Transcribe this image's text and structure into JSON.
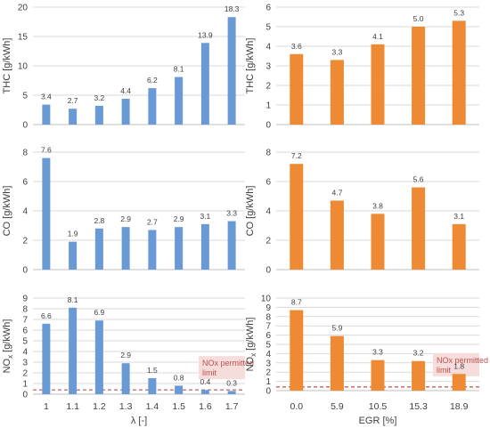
{
  "colors": {
    "blue": "#6a9ad6",
    "orange": "#ed8a33",
    "grid": "#d9d9d9",
    "axis": "#bfbfbf",
    "limit": "#c0504d",
    "limit_bg": "#f7dcdc",
    "text": "#404040"
  },
  "chart_data": [
    {
      "type": "bar",
      "id": "thc-lambda",
      "color": "#6a9ad6",
      "categories": [
        "1",
        "1.1",
        "1.2",
        "1.3",
        "1.4",
        "1.5",
        "1.6",
        "1.7"
      ],
      "values": [
        3.4,
        2.7,
        3.2,
        4.4,
        6.2,
        8.1,
        13.9,
        18.3
      ],
      "value_labels": [
        "3.4",
        "2.7",
        "3.2",
        "4.4",
        "6.2",
        "8.1",
        "13.9",
        "18.3"
      ],
      "ylabel": "THC [g/kWh]",
      "ylim": [
        0,
        20
      ],
      "yticks": [
        "0",
        "5",
        "10",
        "15",
        "20"
      ],
      "grid": true
    },
    {
      "type": "bar",
      "id": "co-lambda",
      "color": "#6a9ad6",
      "categories": [
        "1",
        "1.1",
        "1.2",
        "1.3",
        "1.4",
        "1.5",
        "1.6",
        "1.7"
      ],
      "values": [
        7.6,
        1.9,
        2.8,
        2.9,
        2.7,
        2.9,
        3.1,
        3.3
      ],
      "value_labels": [
        "7.6",
        "1.9",
        "2.8",
        "2.9",
        "2.7",
        "2.9",
        "3.1",
        "3.3"
      ],
      "ylabel": "CO [g/kWh]",
      "ylim": [
        0,
        8
      ],
      "yticks": [
        "0",
        "2",
        "4",
        "6",
        "8"
      ],
      "grid": true
    },
    {
      "type": "bar",
      "id": "nox-lambda",
      "color": "#6a9ad6",
      "categories": [
        "1",
        "1.1",
        "1.2",
        "1.3",
        "1.4",
        "1.5",
        "1.6",
        "1.7"
      ],
      "values": [
        6.6,
        8.1,
        6.9,
        2.9,
        1.5,
        0.8,
        0.4,
        0.3
      ],
      "value_labels": [
        "6.6",
        "8.1",
        "6.9",
        "2.9",
        "1.5",
        "0.8",
        "0.4",
        "0.3"
      ],
      "ylabel_main": "NO",
      "ylabel_sub": "x",
      "ylabel_rest": " [g/kWh]",
      "ylim": [
        0,
        9
      ],
      "yticks": [
        "0",
        "1",
        "2",
        "3",
        "4",
        "5",
        "6",
        "7",
        "8",
        "9"
      ],
      "grid": true,
      "xlabel": "λ [-]",
      "limit": {
        "value": 0.4,
        "label_line1": "NOx permitted",
        "label_line2": "limit"
      }
    },
    {
      "type": "bar",
      "id": "thc-egr",
      "color": "#ed8a33",
      "categories": [
        "0.0",
        "5.9",
        "10.5",
        "15.3",
        "18.9"
      ],
      "values": [
        3.6,
        3.3,
        4.1,
        5.0,
        5.3
      ],
      "value_labels": [
        "3.6",
        "3.3",
        "4.1",
        "5.0",
        "5.3"
      ],
      "ylabel": "THC [g/kWh]",
      "ylim": [
        0,
        6
      ],
      "yticks": [
        "0",
        "1",
        "2",
        "3",
        "4",
        "5",
        "6"
      ],
      "grid": true
    },
    {
      "type": "bar",
      "id": "co-egr",
      "color": "#ed8a33",
      "categories": [
        "0.0",
        "5.9",
        "10.5",
        "15.3",
        "18.9"
      ],
      "values": [
        7.2,
        4.7,
        3.8,
        5.6,
        3.1
      ],
      "value_labels": [
        "7.2",
        "4.7",
        "3.8",
        "5.6",
        "3.1"
      ],
      "ylabel": "CO [g/kWh]",
      "ylim": [
        0,
        8
      ],
      "yticks": [
        "0",
        "2",
        "4",
        "6",
        "8"
      ],
      "grid": true
    },
    {
      "type": "bar",
      "id": "nox-egr",
      "color": "#ed8a33",
      "categories": [
        "0.0",
        "5.9",
        "10.5",
        "15.3",
        "18.9"
      ],
      "values": [
        8.7,
        5.9,
        3.3,
        3.2,
        1.8
      ],
      "value_labels": [
        "8.7",
        "5.9",
        "3.3",
        "3.2",
        "1.8"
      ],
      "ylabel_main": "NO",
      "ylabel_sub": "x",
      "ylabel_rest": " [g/kWh]",
      "ylim": [
        0,
        10
      ],
      "yticks": [
        "0",
        "1",
        "2",
        "3",
        "4",
        "5",
        "6",
        "7",
        "8",
        "9",
        "10"
      ],
      "grid": true,
      "xlabel": "EGR [%]",
      "limit": {
        "value": 0.4,
        "label_line1": "NOx permitted",
        "label_line2": "limit"
      }
    }
  ]
}
